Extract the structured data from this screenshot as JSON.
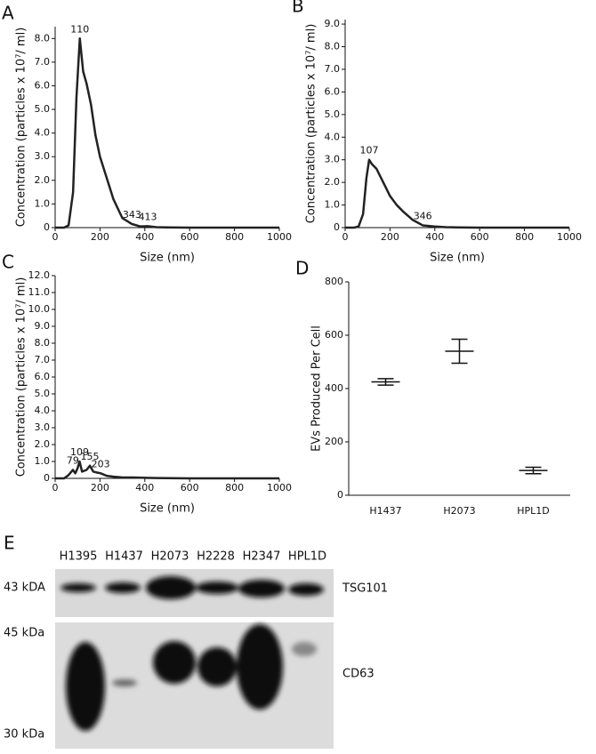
{
  "chart_data": [
    {
      "type": "line",
      "panel": "A",
      "xlabel": "Size (nm)",
      "ylabel": "Concentration (particles x 10⁷/ ml)",
      "xlim": [
        0,
        1000
      ],
      "xticks": [
        0,
        200,
        400,
        600,
        800,
        1000
      ],
      "ylim": [
        0,
        8.5
      ],
      "yticks": [
        0,
        {
          "value": 1,
          "label": "1.0"
        },
        {
          "value": 2,
          "label": "2.0"
        },
        {
          "value": 3,
          "label": "3.0"
        },
        {
          "value": 4,
          "label": "4.0"
        },
        {
          "value": 5,
          "label": "5.0"
        },
        {
          "value": 6,
          "label": "6.0"
        },
        {
          "value": 7,
          "label": "7.0"
        },
        {
          "value": 8,
          "label": "8.0"
        }
      ],
      "series": [
        {
          "color": "#222222",
          "x": [
            0,
            40,
            60,
            80,
            95,
            110,
            125,
            140,
            160,
            180,
            200,
            230,
            260,
            300,
            343,
            380,
            413,
            450,
            500,
            600,
            700,
            800,
            900,
            1000
          ],
          "values": [
            0,
            0,
            0.1,
            1.5,
            5.5,
            8.0,
            6.6,
            6.1,
            5.2,
            3.9,
            3.0,
            2.1,
            1.2,
            0.4,
            0.15,
            0.05,
            0.06,
            0.02,
            0.01,
            0,
            0,
            0,
            0,
            0
          ]
        }
      ],
      "annotations": [
        {
          "text": "110",
          "x": 110,
          "y": 8.0
        },
        {
          "text": "343",
          "x": 343,
          "y": 0.15
        },
        {
          "text": "413",
          "x": 413,
          "y": 0.06
        }
      ]
    },
    {
      "type": "line",
      "panel": "B",
      "xlabel": "Size (nm)",
      "ylabel": "Concentration (particles x 10⁷/ ml)",
      "xlim": [
        0,
        1000
      ],
      "xticks": [
        0,
        200,
        400,
        600,
        800,
        1000
      ],
      "ylim": [
        0,
        9.2
      ],
      "yticks": [
        0,
        {
          "value": 1,
          "label": "1.0"
        },
        {
          "value": 2,
          "label": "2.0"
        },
        {
          "value": 3,
          "label": "3.0"
        },
        {
          "value": 4,
          "label": "4.0"
        },
        {
          "value": 5,
          "label": "5.0"
        },
        {
          "value": 6,
          "label": "6.0"
        },
        {
          "value": 7,
          "label": "7.0"
        },
        {
          "value": 8,
          "label": "8.0"
        },
        {
          "value": 9,
          "label": "9.0"
        }
      ],
      "series": [
        {
          "color": "#222222",
          "x": [
            0,
            40,
            60,
            80,
            95,
            107,
            120,
            140,
            160,
            180,
            200,
            230,
            260,
            300,
            346,
            400,
            450,
            500,
            600,
            700,
            800,
            900,
            1000
          ],
          "values": [
            0,
            0,
            0.05,
            0.6,
            2.2,
            3.0,
            2.8,
            2.6,
            2.2,
            1.8,
            1.4,
            1.0,
            0.7,
            0.35,
            0.1,
            0.05,
            0.02,
            0.01,
            0,
            0,
            0,
            0,
            0
          ]
        }
      ],
      "annotations": [
        {
          "text": "107",
          "x": 107,
          "y": 3.0
        },
        {
          "text": "346",
          "x": 346,
          "y": 0.1
        }
      ]
    },
    {
      "type": "line",
      "panel": "C",
      "xlabel": "Size (nm)",
      "ylabel": "Concentration (particles x 10⁷/ ml)",
      "xlim": [
        0,
        1000
      ],
      "xticks": [
        0,
        200,
        400,
        600,
        800,
        1000
      ],
      "ylim": [
        0,
        12
      ],
      "yticks": [
        0,
        {
          "value": 1,
          "label": "1.0"
        },
        {
          "value": 2,
          "label": "2.0"
        },
        {
          "value": 3,
          "label": "3.0"
        },
        {
          "value": 4,
          "label": "4.0"
        },
        {
          "value": 5,
          "label": "5.0"
        },
        {
          "value": 6,
          "label": "6.0"
        },
        {
          "value": 7,
          "label": "7.0"
        },
        {
          "value": 8,
          "label": "8.0"
        },
        {
          "value": 9,
          "label": "9.0"
        },
        {
          "value": 10,
          "label": "10.0"
        },
        {
          "value": 11,
          "label": "11.0"
        },
        {
          "value": 12,
          "label": "12.0"
        }
      ],
      "series": [
        {
          "color": "#222222",
          "x": [
            0,
            40,
            60,
            79,
            90,
            100,
            109,
            120,
            140,
            155,
            170,
            185,
            203,
            230,
            260,
            300,
            350,
            400,
            450,
            500,
            600,
            700,
            800,
            900,
            1000
          ],
          "values": [
            0,
            0,
            0.2,
            0.5,
            0.3,
            0.6,
            1.0,
            0.4,
            0.5,
            0.75,
            0.4,
            0.35,
            0.3,
            0.15,
            0.1,
            0.05,
            0.05,
            0.03,
            0.02,
            0.01,
            0,
            0,
            0,
            0,
            0
          ]
        }
      ],
      "annotations": [
        {
          "text": "79",
          "x": 79,
          "y": 0.5
        },
        {
          "text": "109",
          "x": 109,
          "y": 1.0
        },
        {
          "text": "155",
          "x": 155,
          "y": 0.75
        },
        {
          "text": "203",
          "x": 203,
          "y": 0.3
        }
      ]
    },
    {
      "type": "errorbar",
      "panel": "D",
      "ylabel": "EVs Produced Per Cell",
      "categories": [
        "H1437",
        "H2073",
        "HPL1D"
      ],
      "values": [
        425,
        540,
        93
      ],
      "errors": [
        12,
        45,
        12
      ],
      "color": "#111111",
      "ylim": [
        0,
        800
      ],
      "yticks": [
        0,
        200,
        400,
        600,
        800
      ]
    }
  ],
  "blot": {
    "panel": "E",
    "lanes": [
      "H1395",
      "H1437",
      "H2073",
      "H2228",
      "H2347",
      "HPL1D"
    ],
    "markers": [
      "43 kDA",
      "45 kDa",
      "30 kDa"
    ],
    "proteins": [
      "TSG101",
      "CD63"
    ]
  }
}
